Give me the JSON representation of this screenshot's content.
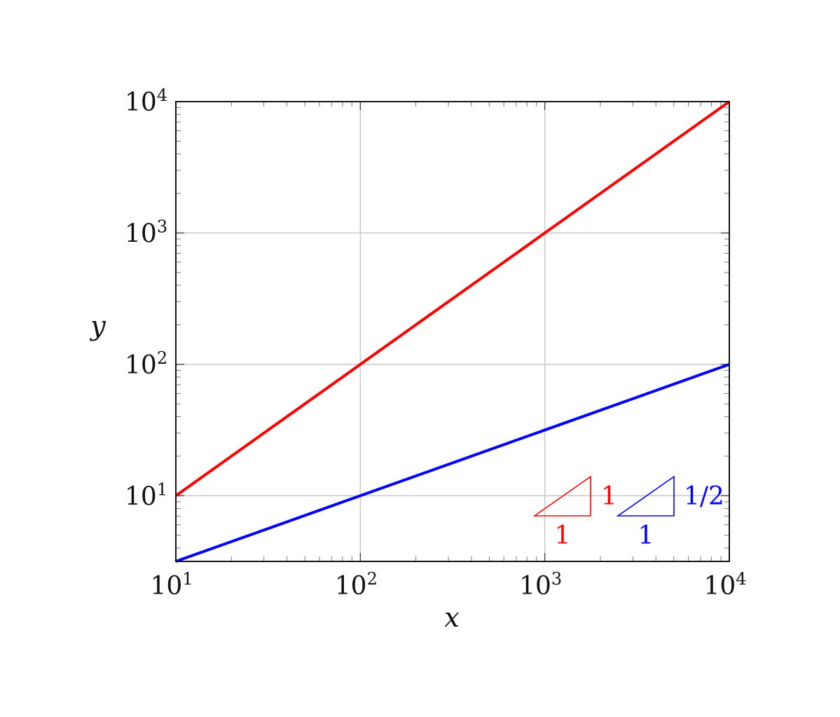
{
  "chart_data": {
    "type": "line",
    "title": "",
    "xlabel": "x",
    "ylabel": "y",
    "x_scale": "log",
    "y_scale": "log",
    "xlim": [
      10,
      10000
    ],
    "ylim": [
      3.162,
      10000
    ],
    "grid": true,
    "x_ticks": [
      {
        "base": "10",
        "exp": "1",
        "value": 10
      },
      {
        "base": "10",
        "exp": "2",
        "value": 100
      },
      {
        "base": "10",
        "exp": "3",
        "value": 1000
      },
      {
        "base": "10",
        "exp": "4",
        "value": 10000
      }
    ],
    "y_ticks": [
      {
        "base": "10",
        "exp": "1",
        "value": 10
      },
      {
        "base": "10",
        "exp": "2",
        "value": 100
      },
      {
        "base": "10",
        "exp": "3",
        "value": 1000
      },
      {
        "base": "10",
        "exp": "4",
        "value": 10000
      }
    ],
    "series": [
      {
        "color": "#ff0000",
        "x": [
          10,
          100,
          1000,
          10000
        ],
        "y": [
          10,
          100,
          1000,
          10000
        ]
      },
      {
        "color": "#0000ff",
        "x": [
          10,
          100,
          1000,
          10000
        ],
        "y": [
          3.162,
          10,
          31.62,
          100
        ]
      }
    ],
    "annotations": [
      {
        "color": "#ff0000",
        "run_label": "1",
        "rise_label": "1"
      },
      {
        "color": "#0000ff",
        "run_label": "1",
        "rise_label": "1/2"
      }
    ]
  }
}
